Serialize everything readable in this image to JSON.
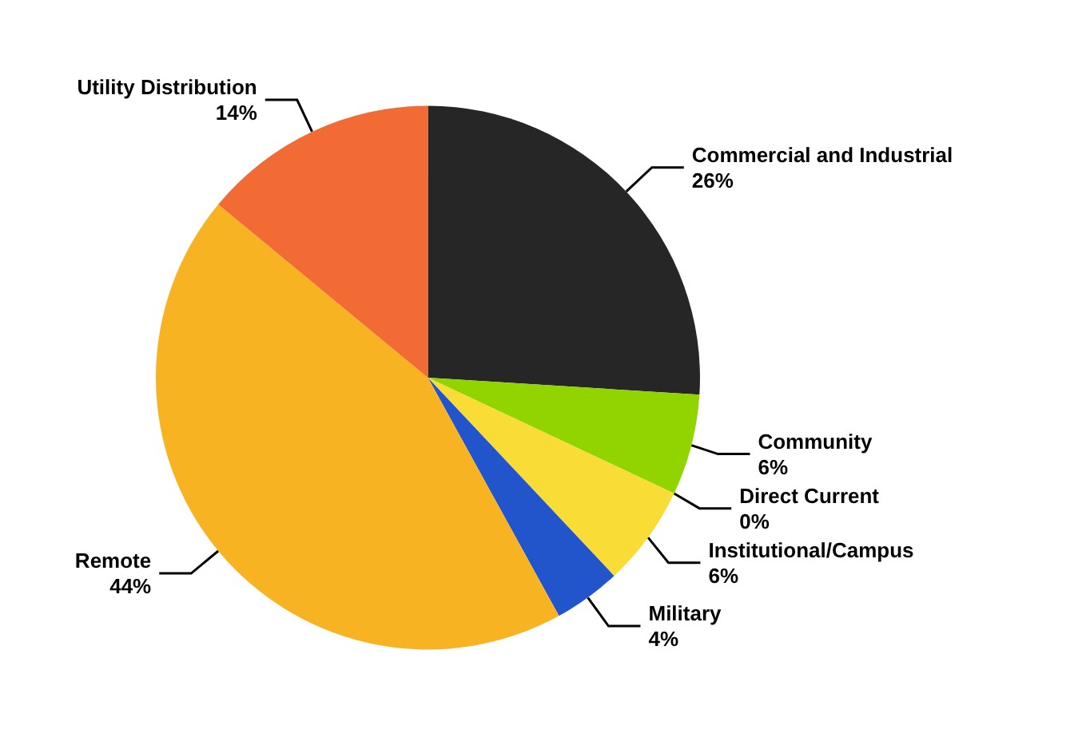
{
  "chart_data": {
    "type": "pie",
    "categories": [
      "Commercial and Industrial",
      "Community",
      "Direct Current",
      "Institutional/Campus",
      "Military",
      "Remote",
      "Utility Distribution"
    ],
    "values": [
      26,
      6,
      0,
      6,
      4,
      44,
      14
    ],
    "value_labels": [
      "26%",
      "6%",
      "0%",
      "6%",
      "4%",
      "44%",
      "14%"
    ],
    "colors": [
      "#262626",
      "#92d400",
      "#3f6b12",
      "#f9dc36",
      "#2255cc",
      "#f8b323",
      "#f26b35"
    ]
  }
}
